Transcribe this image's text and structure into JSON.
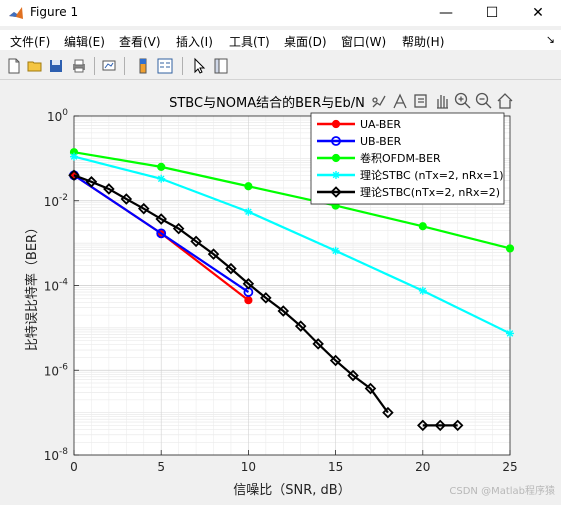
{
  "window": {
    "title": "Figure 1",
    "min_glyph": "—",
    "max_glyph": "☐",
    "close_glyph": "✕"
  },
  "menu": {
    "items": [
      {
        "label": "文件(F)"
      },
      {
        "label": "编辑(E)"
      },
      {
        "label": "查看(V)"
      },
      {
        "label": "插入(I)"
      },
      {
        "label": "工具(T)"
      },
      {
        "label": "桌面(D)"
      },
      {
        "label": "窗口(W)"
      },
      {
        "label": "帮助(H)"
      }
    ],
    "dock_glyph": "↘"
  },
  "toolbar": {
    "icons": [
      "new-figure-icon",
      "open-file-icon",
      "save-icon",
      "print-icon",
      "link-plot-icon",
      "colorbar-icon",
      "legend-icon",
      "pointer-icon",
      "property-editor-icon"
    ]
  },
  "axes_toolbar": {
    "icons": [
      "brush-icon",
      "data-tips-icon",
      "export-icon",
      "pan-icon",
      "zoom-in-icon",
      "zoom-out-icon",
      "home-icon"
    ]
  },
  "watermark": "CSDN @Matlab程序猿",
  "chart_data": {
    "type": "line",
    "title": "STBC与NOMA结合的BER与Eb/N",
    "xlabel": "信噪比（SNR, dB）",
    "ylabel": "比特误比特率（BER）",
    "xlim": [
      0,
      25
    ],
    "ylim": [
      1e-08,
      1
    ],
    "yscale": "log",
    "grid": true,
    "minor_grid": true,
    "x_ticks": [
      0,
      5,
      10,
      15,
      20,
      25
    ],
    "y_ticks": [
      {
        "base": "10",
        "exp": "0",
        "value": 1
      },
      {
        "base": "10",
        "exp": "-2",
        "value": 0.01
      },
      {
        "base": "10",
        "exp": "-4",
        "value": 0.0001
      },
      {
        "base": "10",
        "exp": "-6",
        "value": 1e-06
      },
      {
        "base": "10",
        "exp": "-8",
        "value": 1e-08
      }
    ],
    "legend_position": "top-right",
    "series": [
      {
        "name": "UA-BER",
        "color": "#ff0000",
        "marker": "dot",
        "x": [
          0,
          5,
          10
        ],
        "y": [
          0.04,
          0.0017,
          4.5e-05
        ]
      },
      {
        "name": "UB-BER",
        "color": "#0000ff",
        "marker": "circle",
        "x": [
          0,
          5,
          10
        ],
        "y": [
          0.04,
          0.0017,
          7e-05
        ]
      },
      {
        "name": "卷积OFDM-BER",
        "color": "#00ff00",
        "marker": "dot",
        "x": [
          0,
          5,
          10,
          15,
          20,
          25
        ],
        "y": [
          0.14,
          0.063,
          0.022,
          0.0077,
          0.0025,
          0.00075
        ]
      },
      {
        "name": "理论STBC (nTx=2, nRx=1)",
        "color": "#00ffff",
        "marker": "star",
        "x": [
          0,
          5,
          10,
          15,
          20,
          25
        ],
        "y": [
          0.11,
          0.033,
          0.0055,
          0.00066,
          7.5e-05,
          7.4e-06
        ]
      },
      {
        "name": "理论STBC(nTx=2, nRx=2)",
        "color": "#000000",
        "marker": "diamond",
        "x": [
          0,
          1,
          2,
          3,
          4,
          5,
          6,
          7,
          8,
          9,
          10,
          11,
          12,
          13,
          14,
          15,
          16,
          17,
          18,
          null,
          20,
          21,
          22
        ],
        "y": [
          0.04,
          0.028,
          0.019,
          0.011,
          0.0065,
          0.0037,
          0.0022,
          0.0011,
          0.00055,
          0.00025,
          0.00011,
          5.1e-05,
          2.5e-05,
          1.1e-05,
          4.2e-06,
          1.7e-06,
          7.5e-07,
          3.7e-07,
          1e-07,
          null,
          5e-08,
          5e-08,
          5e-08
        ]
      }
    ]
  }
}
